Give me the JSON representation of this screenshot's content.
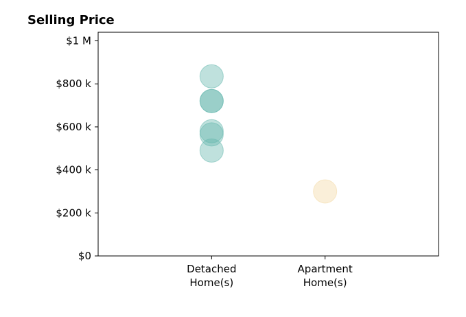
{
  "chart_data": {
    "type": "scatter",
    "title": "Selling Price",
    "xlabel": "",
    "ylabel": "",
    "categories": [
      "Detached\nHome(s)",
      "Apartment\nHome(s)"
    ],
    "ylim": [
      0,
      1040000
    ],
    "y_ticks": [
      {
        "value": 0,
        "label": "$0"
      },
      {
        "value": 200000,
        "label": "$200 k"
      },
      {
        "value": 400000,
        "label": "$400 k"
      },
      {
        "value": 600000,
        "label": "$600 k"
      },
      {
        "value": 800000,
        "label": "$800 k"
      },
      {
        "value": 1000000,
        "label": "$1 M"
      }
    ],
    "series": [
      {
        "category": "Detached\nHome(s)",
        "color": "#66b8ae",
        "values": [
          835000,
          720000,
          720000,
          580000,
          565000,
          490000
        ]
      },
      {
        "category": "Apartment\nHome(s)",
        "color": "#f3d9a4",
        "values": [
          300000
        ]
      }
    ],
    "grid": false,
    "legend": "none"
  }
}
